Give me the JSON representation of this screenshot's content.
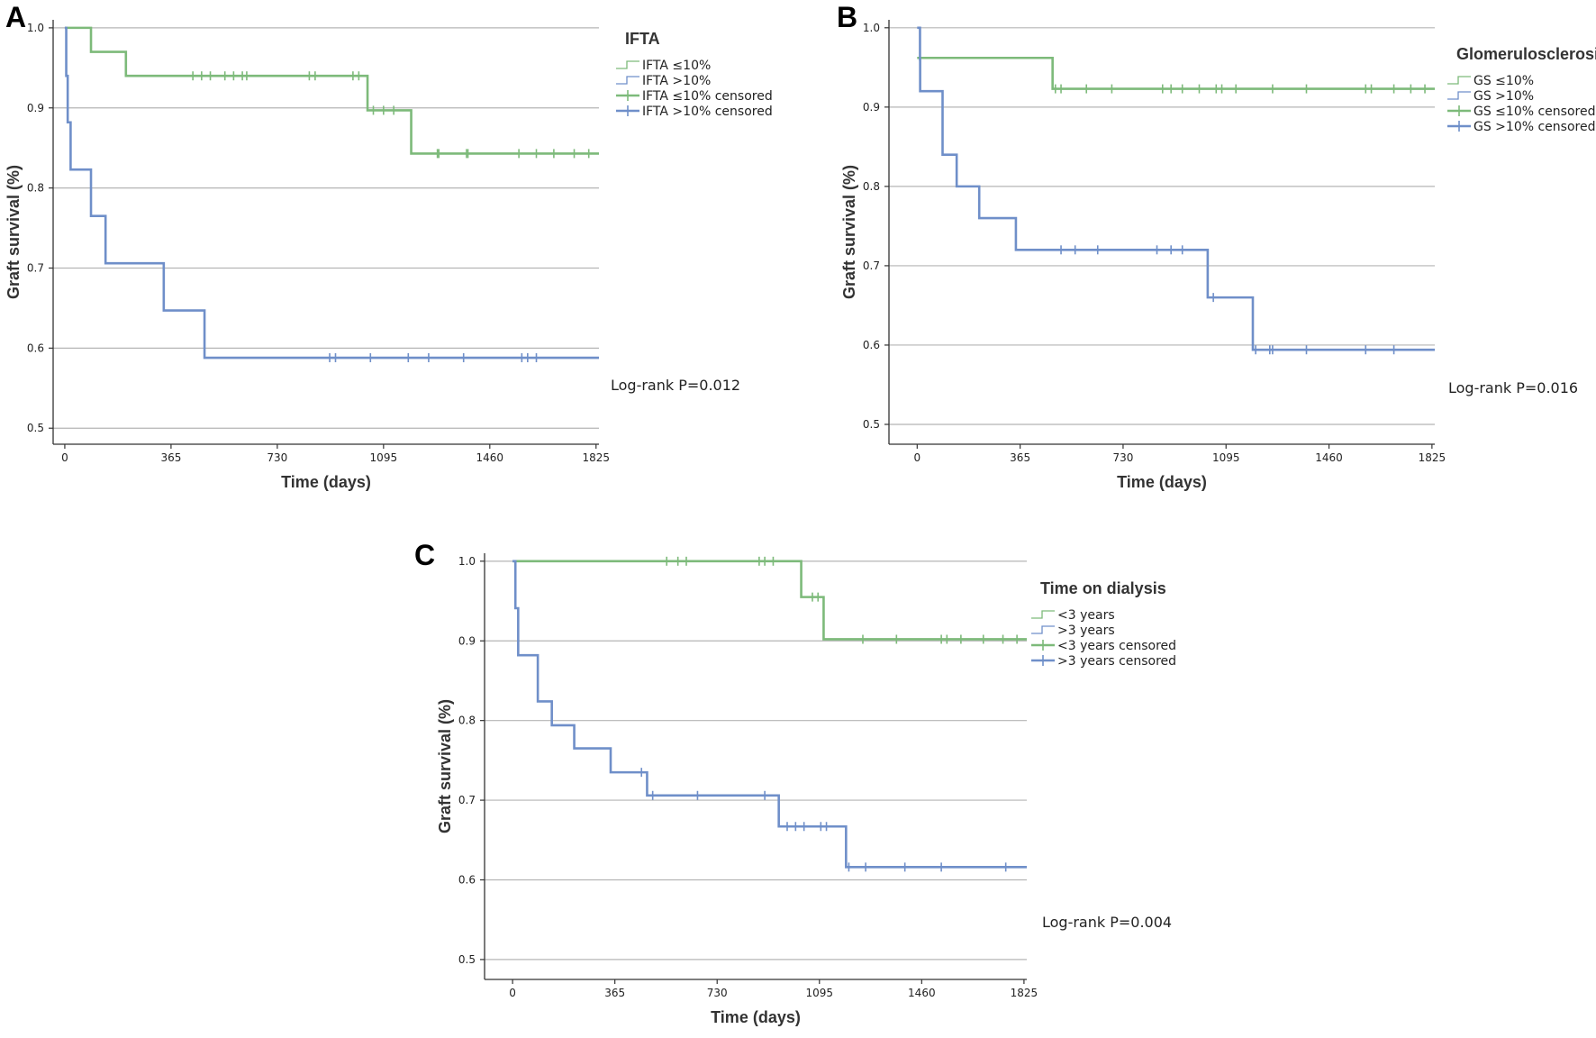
{
  "colors": {
    "green": "#7dba7a",
    "blue": "#6f8fc9",
    "grid": "#b5b5b5",
    "axis": "#333333"
  },
  "chart_data": [
    {
      "type": "line",
      "panel": "A",
      "legend_title": "IFTA",
      "legend": [
        {
          "label": "IFTA ≤10%",
          "kind": "line",
          "color": "#7dba7a"
        },
        {
          "label": "IFTA >10%",
          "kind": "line",
          "color": "#6f8fc9"
        },
        {
          "label": "IFTA ≤10% censored",
          "kind": "censor",
          "color": "#7dba7a"
        },
        {
          "label": "IFTA >10% censored",
          "kind": "censor",
          "color": "#6f8fc9"
        }
      ],
      "xlabel": "Time (days)",
      "ylabel": "Graft survival (%)",
      "xlim": [
        -40,
        1835
      ],
      "ylim": [
        0.48,
        1.01
      ],
      "xticks": [
        0,
        365,
        730,
        1095,
        1460,
        1825
      ],
      "yticks": [
        0.5,
        0.6,
        0.7,
        0.8,
        0.9,
        1.0
      ],
      "ytick_labels": [
        "0.5",
        "0.6",
        "0.7",
        "0.8",
        "0.9",
        "1.0"
      ],
      "grid": true,
      "legend_position": "top-right",
      "annotation": "Log-rank P=0.012",
      "series": [
        {
          "color": "#7dba7a",
          "steps": [
            [
              0,
              1.0
            ],
            [
              90,
              0.97
            ],
            [
              210,
              0.94
            ],
            [
              1040,
              0.897
            ],
            [
              1190,
              0.843
            ]
          ],
          "x_end": 1840,
          "censored": [
            [
              440,
              0.94
            ],
            [
              470,
              0.94
            ],
            [
              500,
              0.94
            ],
            [
              550,
              0.94
            ],
            [
              580,
              0.94
            ],
            [
              610,
              0.94
            ],
            [
              625,
              0.94
            ],
            [
              840,
              0.94
            ],
            [
              860,
              0.94
            ],
            [
              990,
              0.94
            ],
            [
              1010,
              0.94
            ],
            [
              1060,
              0.897
            ],
            [
              1095,
              0.897
            ],
            [
              1130,
              0.897
            ],
            [
              1280,
              0.843
            ],
            [
              1285,
              0.843
            ],
            [
              1380,
              0.843
            ],
            [
              1385,
              0.843
            ],
            [
              1560,
              0.843
            ],
            [
              1620,
              0.843
            ],
            [
              1680,
              0.843
            ],
            [
              1750,
              0.843
            ],
            [
              1800,
              0.843
            ]
          ]
        },
        {
          "color": "#6f8fc9",
          "steps": [
            [
              0,
              1.0
            ],
            [
              5,
              0.94
            ],
            [
              10,
              0.882
            ],
            [
              20,
              0.823
            ],
            [
              90,
              0.765
            ],
            [
              140,
              0.706
            ],
            [
              340,
              0.647
            ],
            [
              480,
              0.588
            ]
          ],
          "x_end": 1840,
          "censored": [
            [
              910,
              0.588
            ],
            [
              930,
              0.588
            ],
            [
              1050,
              0.588
            ],
            [
              1180,
              0.588
            ],
            [
              1250,
              0.588
            ],
            [
              1370,
              0.588
            ],
            [
              1570,
              0.588
            ],
            [
              1590,
              0.588
            ],
            [
              1620,
              0.588
            ]
          ]
        }
      ]
    },
    {
      "type": "line",
      "panel": "B",
      "legend_title": "Glomerulosclerosis",
      "legend": [
        {
          "label": "GS ≤10%",
          "kind": "line",
          "color": "#7dba7a"
        },
        {
          "label": "GS >10%",
          "kind": "line",
          "color": "#6f8fc9"
        },
        {
          "label": "GS ≤10% censored",
          "kind": "censor",
          "color": "#7dba7a"
        },
        {
          "label": "GS >10% censored",
          "kind": "censor",
          "color": "#6f8fc9"
        }
      ],
      "xlabel": "Time (days)",
      "ylabel": "Graft survival (%)",
      "xlim": [
        -100,
        1835
      ],
      "ylim": [
        0.475,
        1.01
      ],
      "xticks": [
        0,
        365,
        730,
        1095,
        1460,
        1825
      ],
      "yticks": [
        0.5,
        0.6,
        0.7,
        0.8,
        0.9,
        1.0
      ],
      "ytick_labels": [
        "0.5",
        "0.6",
        "0.7",
        "0.8",
        "0.9",
        "1.0"
      ],
      "grid": true,
      "legend_position": "top-right",
      "annotation": "Log-rank P=0.016",
      "series": [
        {
          "color": "#7dba7a",
          "steps": [
            [
              0,
              0.962
            ],
            [
              480,
              0.923
            ]
          ],
          "x_end": 1840,
          "censored": [
            [
              490,
              0.923
            ],
            [
              510,
              0.923
            ],
            [
              600,
              0.923
            ],
            [
              690,
              0.923
            ],
            [
              870,
              0.923
            ],
            [
              900,
              0.923
            ],
            [
              940,
              0.923
            ],
            [
              1000,
              0.923
            ],
            [
              1060,
              0.923
            ],
            [
              1080,
              0.923
            ],
            [
              1130,
              0.923
            ],
            [
              1260,
              0.923
            ],
            [
              1380,
              0.923
            ],
            [
              1590,
              0.923
            ],
            [
              1610,
              0.923
            ],
            [
              1690,
              0.923
            ],
            [
              1750,
              0.923
            ],
            [
              1800,
              0.923
            ]
          ]
        },
        {
          "color": "#6f8fc9",
          "steps": [
            [
              0,
              1.0
            ],
            [
              10,
              0.96
            ],
            [
              10.5,
              0.92
            ],
            [
              90,
              0.84
            ],
            [
              140,
              0.8
            ],
            [
              220,
              0.76
            ],
            [
              350,
              0.72
            ],
            [
              1030,
              0.66
            ],
            [
              1190,
              0.594
            ]
          ],
          "x_end": 1840,
          "censored": [
            [
              510,
              0.72
            ],
            [
              560,
              0.72
            ],
            [
              640,
              0.72
            ],
            [
              850,
              0.72
            ],
            [
              900,
              0.72
            ],
            [
              940,
              0.72
            ],
            [
              1050,
              0.66
            ],
            [
              1200,
              0.594
            ],
            [
              1250,
              0.594
            ],
            [
              1260,
              0.594
            ],
            [
              1380,
              0.594
            ],
            [
              1590,
              0.594
            ],
            [
              1690,
              0.594
            ]
          ]
        }
      ]
    },
    {
      "type": "line",
      "panel": "C",
      "legend_title": "Time on dialysis",
      "legend": [
        {
          "label": "<3 years",
          "kind": "line",
          "color": "#7dba7a"
        },
        {
          "label": ">3 years",
          "kind": "line",
          "color": "#6f8fc9"
        },
        {
          "label": "<3 years censored",
          "kind": "censor",
          "color": "#7dba7a"
        },
        {
          "label": ">3 years censored",
          "kind": "censor",
          "color": "#6f8fc9"
        }
      ],
      "xlabel": "Time (days)",
      "ylabel": "Graft survival (%)",
      "xlim": [
        -100,
        1835
      ],
      "ylim": [
        0.475,
        1.01
      ],
      "xticks": [
        0,
        365,
        730,
        1095,
        1460,
        1825
      ],
      "yticks": [
        0.5,
        0.6,
        0.7,
        0.8,
        0.9,
        1.0
      ],
      "ytick_labels": [
        "0.5",
        "0.6",
        "0.7",
        "0.8",
        "0.9",
        "1.0"
      ],
      "grid": true,
      "legend_position": "top-right",
      "annotation": "Log-rank P=0.004",
      "series": [
        {
          "color": "#7dba7a",
          "steps": [
            [
              0,
              1.0
            ],
            [
              1030,
              0.955
            ],
            [
              1110,
              0.902
            ]
          ],
          "x_end": 1840,
          "censored": [
            [
              550,
              1.0
            ],
            [
              590,
              1.0
            ],
            [
              620,
              1.0
            ],
            [
              880,
              1.0
            ],
            [
              900,
              1.0
            ],
            [
              930,
              1.0
            ],
            [
              1070,
              0.955
            ],
            [
              1090,
              0.955
            ],
            [
              1250,
              0.902
            ],
            [
              1370,
              0.902
            ],
            [
              1530,
              0.902
            ],
            [
              1550,
              0.902
            ],
            [
              1600,
              0.902
            ],
            [
              1680,
              0.902
            ],
            [
              1750,
              0.902
            ],
            [
              1800,
              0.902
            ]
          ]
        },
        {
          "color": "#6f8fc9",
          "steps": [
            [
              0,
              1.0
            ],
            [
              10,
              0.941
            ],
            [
              20,
              0.882
            ],
            [
              90,
              0.824
            ],
            [
              140,
              0.794
            ],
            [
              220,
              0.765
            ],
            [
              350,
              0.735
            ],
            [
              480,
              0.706
            ],
            [
              950,
              0.667
            ],
            [
              1190,
              0.616
            ]
          ],
          "x_end": 1840,
          "censored": [
            [
              460,
              0.735
            ],
            [
              500,
              0.706
            ],
            [
              660,
              0.706
            ],
            [
              900,
              0.706
            ],
            [
              980,
              0.667
            ],
            [
              1010,
              0.667
            ],
            [
              1040,
              0.667
            ],
            [
              1100,
              0.667
            ],
            [
              1120,
              0.667
            ],
            [
              1200,
              0.616
            ],
            [
              1260,
              0.616
            ],
            [
              1400,
              0.616
            ],
            [
              1530,
              0.616
            ],
            [
              1760,
              0.616
            ]
          ]
        }
      ]
    }
  ]
}
